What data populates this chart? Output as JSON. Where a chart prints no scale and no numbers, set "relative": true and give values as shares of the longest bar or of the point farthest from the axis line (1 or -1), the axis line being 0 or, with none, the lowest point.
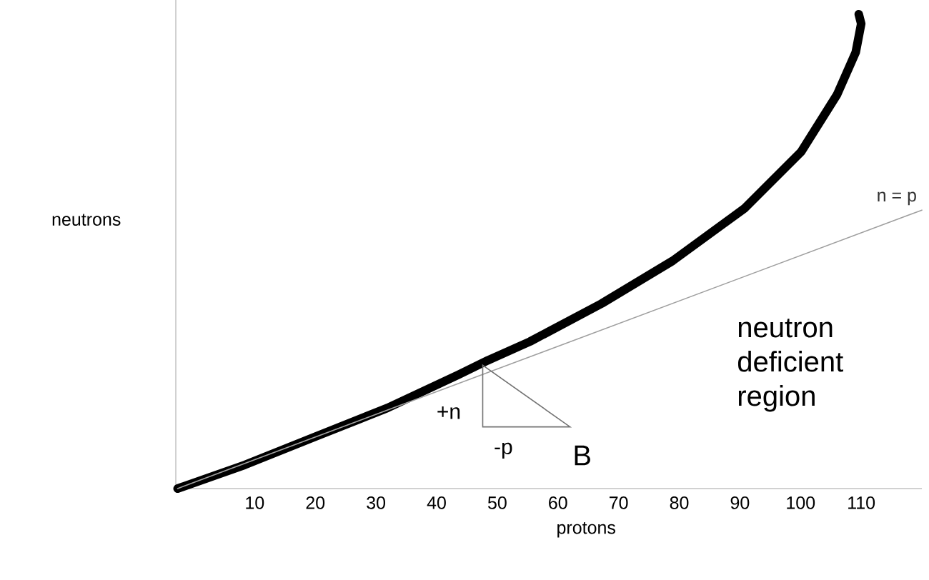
{
  "chart_data": {
    "type": "line",
    "relative": true,
    "xlabel": "protons",
    "ylabel": "neutrons",
    "xlim": [
      -3,
      120
    ],
    "xticks": [
      10,
      20,
      30,
      40,
      50,
      60,
      70,
      80,
      90,
      100,
      110
    ],
    "series": [
      {
        "color": "#000000",
        "x": [
          -2.7,
          8.4,
          20.1,
          31.9,
          43.6,
          48.4,
          55.4,
          67.2,
          78.9,
          90.7,
          100.1,
          106,
          109.1,
          110,
          109.6
        ],
        "values": [
          0,
          0.05,
          0.11,
          0.17,
          0.24,
          0.27,
          0.31,
          0.39,
          0.48,
          0.59,
          0.71,
          0.83,
          0.92,
          0.98,
          1
        ]
      },
      {
        "name": "n = p",
        "color": "#a0a0a0",
        "x": [
          -2.7,
          120
        ],
        "values": [
          0,
          0.587
        ]
      }
    ],
    "annotations": [
      "+n",
      "-p",
      "B",
      "neutron deficient region"
    ]
  }
}
